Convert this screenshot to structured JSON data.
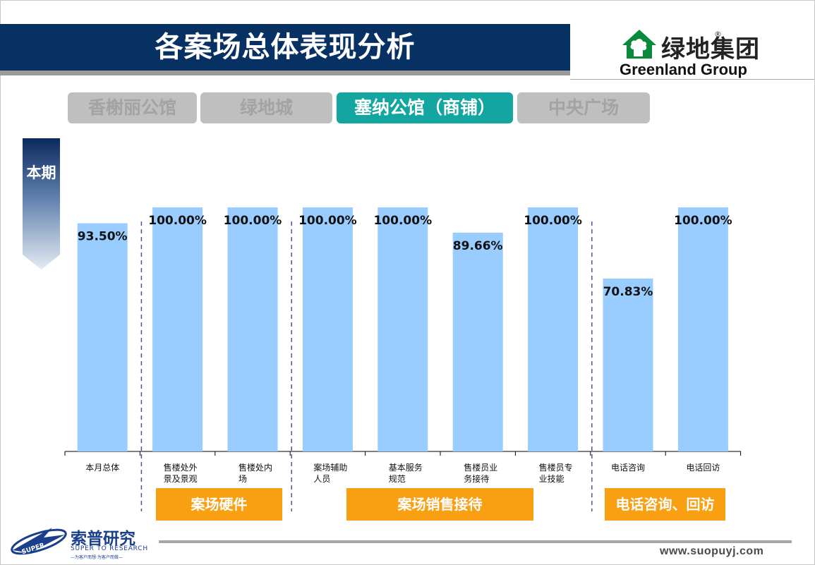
{
  "header": {
    "title": "各案场总体表现分析"
  },
  "logo": {
    "cn": "绿地集团",
    "reg": "®",
    "en": "Greenland Group"
  },
  "tabs": [
    {
      "label": "香榭丽公馆",
      "active": false
    },
    {
      "label": "绿地城",
      "active": false
    },
    {
      "label": "塞纳公馆（商铺）",
      "active": true
    },
    {
      "label": "中央广场",
      "active": false
    }
  ],
  "side_label": "本期",
  "groups": [
    {
      "label": "案场硬件"
    },
    {
      "label": "案场销售接待"
    },
    {
      "label": "电话咨询、回访"
    }
  ],
  "footer": {
    "brand_cn": "索普研究",
    "brand_en": "SUPER TO RESEARCH",
    "brand_sub": "—为客户而想·为客户而做—",
    "logo_text": "SUPER",
    "url": "www.suopuyj.com"
  },
  "colors": {
    "bar": "#99ccff",
    "title_bar": "#073163",
    "tab_active": "#13a5a0",
    "tab_inactive": "#bfbfbf",
    "group_box": "#f89f12"
  },
  "chart_data": {
    "type": "bar",
    "categories": [
      "本月总体",
      "售楼处外景及景观",
      "售楼处内场",
      "案场辅助人员",
      "基本服务规范",
      "售楼员业务接待",
      "售楼员专业技能",
      "电话咨询",
      "电话回访"
    ],
    "category_lines": [
      [
        "本月总体"
      ],
      [
        "售楼处外",
        "景及景观"
      ],
      [
        "售楼处内",
        "场"
      ],
      [
        "案场辅助",
        "人员"
      ],
      [
        "基本服务",
        "规范"
      ],
      [
        "售楼员业",
        "务接待"
      ],
      [
        "售楼员专",
        "业技能"
      ],
      [
        "电话咨询"
      ],
      [
        "电话回访"
      ]
    ],
    "values": [
      93.5,
      100,
      100,
      100,
      100,
      89.66,
      100,
      70.83,
      100
    ],
    "value_labels": [
      "93.50%",
      "100.00%",
      "100.00%",
      "100.00%",
      "100.00%",
      "89.66%",
      "100.00%",
      "70.83%",
      "100.00%"
    ],
    "ylim": [
      0,
      100
    ],
    "grid": false,
    "legend": "none"
  }
}
